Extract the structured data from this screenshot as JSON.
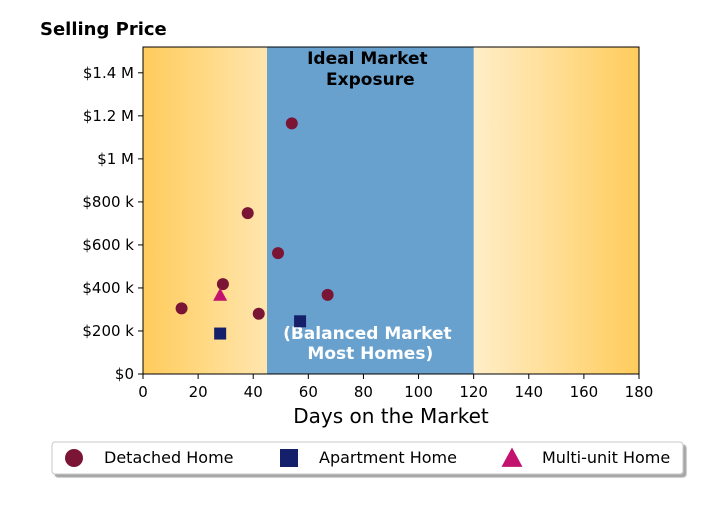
{
  "chart_data": {
    "type": "scatter",
    "title": "",
    "ylabel": "Selling Price",
    "xlabel": "Days on the Market",
    "xlim": [
      0,
      180
    ],
    "ylim": [
      0,
      1520000
    ],
    "x_ticks": [
      0,
      20,
      40,
      60,
      80,
      100,
      120,
      140,
      160,
      180
    ],
    "x_tick_labels": [
      "0",
      "20",
      "40",
      "60",
      "80",
      "100",
      "120",
      "140",
      "160",
      "180"
    ],
    "y_ticks": [
      0,
      200000,
      400000,
      600000,
      800000,
      1000000,
      1200000,
      1400000
    ],
    "y_tick_labels": [
      "$0",
      "$200 k",
      "$400 k",
      "$600 k",
      "$800 k",
      "$1 M",
      "$1.2 M",
      "$1.4 M"
    ],
    "grid": false,
    "background_gradient": {
      "edge_color": "#ffcc5c",
      "center_color": "#ffffff",
      "from_x": 0,
      "to_x": 180
    },
    "band": {
      "x_range": [
        45,
        120
      ],
      "color": "#68a0ce",
      "label_top": [
        "Ideal Market",
        "Exposure"
      ],
      "label_bottom": [
        "(Balanced Market",
        "Most Homes)"
      ]
    },
    "series": [
      {
        "name": "Detached Home",
        "marker": "circle",
        "color": "#7b1535",
        "points": [
          {
            "x": 14,
            "y": 305000
          },
          {
            "x": 29,
            "y": 418000
          },
          {
            "x": 38,
            "y": 748000
          },
          {
            "x": 42,
            "y": 280000
          },
          {
            "x": 49,
            "y": 562000
          },
          {
            "x": 54,
            "y": 1165000
          },
          {
            "x": 67,
            "y": 368000
          }
        ]
      },
      {
        "name": "Apartment Home",
        "marker": "square",
        "color": "#14206a",
        "points": [
          {
            "x": 28,
            "y": 188000
          },
          {
            "x": 57,
            "y": 245000
          }
        ]
      },
      {
        "name": "Multi-unit Home",
        "marker": "triangle",
        "color": "#c2126e",
        "points": [
          {
            "x": 28,
            "y": 368000
          }
        ]
      }
    ],
    "legend": {
      "placement": "bottom",
      "columns": 3
    }
  }
}
